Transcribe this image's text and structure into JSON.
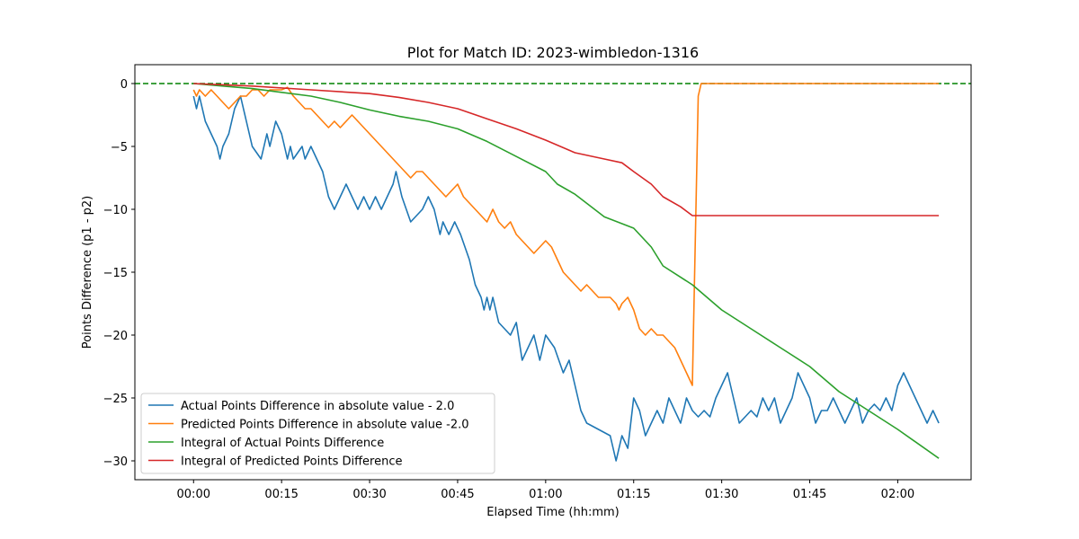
{
  "chart_data": {
    "type": "line",
    "title": "Plot for Match ID: 2023-wimbledon-1316",
    "xlabel": "Elapsed Time (hh:mm)",
    "ylabel": "Points Difference (p1 - p2)",
    "x_unit": "minutes",
    "xlim": [
      -10,
      132.5
    ],
    "ylim": [
      -31.5,
      1.5
    ],
    "x_ticks": [
      {
        "value": 0,
        "label": "00:00"
      },
      {
        "value": 15,
        "label": "00:15"
      },
      {
        "value": 30,
        "label": "00:30"
      },
      {
        "value": 45,
        "label": "00:45"
      },
      {
        "value": 60,
        "label": "01:00"
      },
      {
        "value": 75,
        "label": "01:15"
      },
      {
        "value": 90,
        "label": "01:30"
      },
      {
        "value": 105,
        "label": "01:45"
      },
      {
        "value": 120,
        "label": "02:00"
      }
    ],
    "y_ticks": [
      {
        "value": 0,
        "label": "0"
      },
      {
        "value": -5,
        "label": "−5"
      },
      {
        "value": -10,
        "label": "−10"
      },
      {
        "value": -15,
        "label": "−15"
      },
      {
        "value": -20,
        "label": "−20"
      },
      {
        "value": -25,
        "label": "−25"
      },
      {
        "value": -30,
        "label": "−30"
      }
    ],
    "reference_line": {
      "y": 0,
      "color": "#008000",
      "style": "dashed"
    },
    "legend_position": "lower-left",
    "grid": false,
    "series": [
      {
        "name": "Actual Points Difference in absolute value - 2.0",
        "color": "#1f77b4",
        "points": [
          [
            0,
            -1
          ],
          [
            0.5,
            -2
          ],
          [
            1,
            -1
          ],
          [
            2,
            -3
          ],
          [
            3,
            -4
          ],
          [
            4,
            -5
          ],
          [
            4.5,
            -6
          ],
          [
            5,
            -5
          ],
          [
            6,
            -4
          ],
          [
            7,
            -2
          ],
          [
            8,
            -1
          ],
          [
            9,
            -3
          ],
          [
            10,
            -5
          ],
          [
            11.5,
            -6
          ],
          [
            12.5,
            -4
          ],
          [
            13,
            -5
          ],
          [
            14,
            -3
          ],
          [
            15,
            -4
          ],
          [
            16,
            -6
          ],
          [
            16.5,
            -5
          ],
          [
            17,
            -6
          ],
          [
            18.5,
            -5
          ],
          [
            19,
            -6
          ],
          [
            20,
            -5
          ],
          [
            21,
            -6
          ],
          [
            22,
            -7
          ],
          [
            23,
            -9
          ],
          [
            24,
            -10
          ],
          [
            25,
            -9
          ],
          [
            26,
            -8
          ],
          [
            27,
            -9
          ],
          [
            28,
            -10
          ],
          [
            29,
            -9
          ],
          [
            30,
            -10
          ],
          [
            31,
            -9
          ],
          [
            32,
            -10
          ],
          [
            33,
            -9
          ],
          [
            34,
            -8
          ],
          [
            34.5,
            -7
          ],
          [
            35.5,
            -9
          ],
          [
            37,
            -11
          ],
          [
            38,
            -10.5
          ],
          [
            39,
            -10
          ],
          [
            40,
            -9
          ],
          [
            41,
            -10
          ],
          [
            42,
            -12
          ],
          [
            42.5,
            -11
          ],
          [
            43.5,
            -12
          ],
          [
            44.5,
            -11
          ],
          [
            45.5,
            -12
          ],
          [
            47,
            -14
          ],
          [
            48,
            -16
          ],
          [
            49,
            -17
          ],
          [
            49.5,
            -18
          ],
          [
            50,
            -17
          ],
          [
            50.5,
            -18
          ],
          [
            51,
            -17
          ],
          [
            52,
            -19
          ],
          [
            54,
            -20
          ],
          [
            55,
            -19
          ],
          [
            56,
            -22
          ],
          [
            57,
            -21
          ],
          [
            58,
            -20
          ],
          [
            59,
            -22
          ],
          [
            60,
            -20
          ],
          [
            61.5,
            -21
          ],
          [
            63,
            -23
          ],
          [
            64,
            -22
          ],
          [
            65,
            -24
          ],
          [
            66,
            -26
          ],
          [
            67,
            -27
          ],
          [
            71,
            -28
          ],
          [
            72,
            -30
          ],
          [
            73,
            -28
          ],
          [
            74,
            -29
          ],
          [
            75,
            -25
          ],
          [
            76,
            -26
          ],
          [
            77,
            -28
          ],
          [
            78,
            -27
          ],
          [
            79,
            -26
          ],
          [
            80,
            -27
          ],
          [
            81,
            -25
          ],
          [
            82,
            -26
          ],
          [
            83,
            -27
          ],
          [
            84,
            -25
          ],
          [
            85,
            -26
          ],
          [
            86,
            -26.5
          ],
          [
            87,
            -26
          ],
          [
            88,
            -26.5
          ],
          [
            89,
            -25
          ],
          [
            90,
            -24
          ],
          [
            91,
            -23
          ],
          [
            92,
            -25
          ],
          [
            93,
            -27
          ],
          [
            95,
            -26
          ],
          [
            96,
            -26.5
          ],
          [
            97,
            -25
          ],
          [
            98,
            -26
          ],
          [
            99,
            -25
          ],
          [
            100,
            -27
          ],
          [
            101,
            -26
          ],
          [
            102,
            -25
          ],
          [
            103,
            -23
          ],
          [
            104,
            -24
          ],
          [
            105,
            -25
          ],
          [
            106,
            -27
          ],
          [
            107,
            -26
          ],
          [
            108,
            -26
          ],
          [
            109,
            -25
          ],
          [
            110,
            -26
          ],
          [
            111,
            -27
          ],
          [
            112,
            -26
          ],
          [
            113,
            -25
          ],
          [
            114,
            -27
          ],
          [
            115,
            -26
          ],
          [
            116,
            -25.5
          ],
          [
            117,
            -26
          ],
          [
            118,
            -25
          ],
          [
            119,
            -26
          ],
          [
            120,
            -24
          ],
          [
            121,
            -23
          ],
          [
            122,
            -24
          ],
          [
            123,
            -25
          ],
          [
            124,
            -26
          ],
          [
            125,
            -27
          ],
          [
            126,
            -26
          ],
          [
            127,
            -27
          ]
        ]
      },
      {
        "name": "Predicted Points Difference in absolute value -2.0",
        "color": "#ff7f0e",
        "points": [
          [
            0,
            -0.5
          ],
          [
            0.5,
            -1
          ],
          [
            1,
            -0.5
          ],
          [
            2,
            -1
          ],
          [
            3,
            -0.5
          ],
          [
            4,
            -1
          ],
          [
            5,
            -1.5
          ],
          [
            6,
            -2
          ],
          [
            7,
            -1.5
          ],
          [
            8,
            -1
          ],
          [
            9,
            -1
          ],
          [
            10,
            -0.5
          ],
          [
            11,
            -0.5
          ],
          [
            12,
            -1
          ],
          [
            13,
            -0.5
          ],
          [
            14,
            -0.5
          ],
          [
            15,
            -0.5
          ],
          [
            16,
            -0.3
          ],
          [
            17,
            -1
          ],
          [
            18,
            -1.5
          ],
          [
            19,
            -2
          ],
          [
            20,
            -2
          ],
          [
            21,
            -2.5
          ],
          [
            22,
            -3
          ],
          [
            23,
            -3.5
          ],
          [
            24,
            -3
          ],
          [
            25,
            -3.5
          ],
          [
            26,
            -3
          ],
          [
            27,
            -2.5
          ],
          [
            28,
            -3
          ],
          [
            29,
            -3.5
          ],
          [
            30,
            -4
          ],
          [
            31,
            -4.5
          ],
          [
            32,
            -5
          ],
          [
            33,
            -5.5
          ],
          [
            34,
            -6
          ],
          [
            35,
            -6.5
          ],
          [
            36,
            -7
          ],
          [
            37,
            -7.5
          ],
          [
            38,
            -7
          ],
          [
            39,
            -7
          ],
          [
            40,
            -7.5
          ],
          [
            41,
            -8
          ],
          [
            42,
            -8.5
          ],
          [
            43,
            -9
          ],
          [
            44,
            -8.5
          ],
          [
            45,
            -8
          ],
          [
            46,
            -9
          ],
          [
            47,
            -9.5
          ],
          [
            48,
            -10
          ],
          [
            49,
            -10.5
          ],
          [
            50,
            -11
          ],
          [
            51,
            -10
          ],
          [
            52,
            -11
          ],
          [
            53,
            -11.5
          ],
          [
            54,
            -11
          ],
          [
            55,
            -12
          ],
          [
            56,
            -12.5
          ],
          [
            57,
            -13
          ],
          [
            58,
            -13.5
          ],
          [
            59,
            -13
          ],
          [
            60,
            -12.5
          ],
          [
            61,
            -13
          ],
          [
            62,
            -14
          ],
          [
            63,
            -15
          ],
          [
            64,
            -15.5
          ],
          [
            65,
            -16
          ],
          [
            66,
            -16.5
          ],
          [
            67,
            -16
          ],
          [
            68,
            -16.5
          ],
          [
            69,
            -17
          ],
          [
            70,
            -17
          ],
          [
            71,
            -17
          ],
          [
            72,
            -17.5
          ],
          [
            72.5,
            -18
          ],
          [
            73,
            -17.5
          ],
          [
            74,
            -17
          ],
          [
            75,
            -18
          ],
          [
            76,
            -19.5
          ],
          [
            77,
            -20
          ],
          [
            78,
            -19.5
          ],
          [
            79,
            -20
          ],
          [
            80,
            -20
          ],
          [
            81,
            -20.5
          ],
          [
            82,
            -21
          ],
          [
            83,
            -22
          ],
          [
            84,
            -23
          ],
          [
            85,
            -24
          ],
          [
            86,
            -1
          ],
          [
            86.5,
            0
          ],
          [
            87,
            0
          ],
          [
            90,
            0
          ],
          [
            100,
            0
          ],
          [
            110,
            0
          ],
          [
            120,
            0
          ],
          [
            127,
            0
          ]
        ]
      },
      {
        "name": "Integral of Actual Points Difference",
        "color": "#2ca02c",
        "points": [
          [
            0,
            0
          ],
          [
            5,
            -0.2
          ],
          [
            10,
            -0.4
          ],
          [
            15,
            -0.7
          ],
          [
            20,
            -1.0
          ],
          [
            25,
            -1.5
          ],
          [
            30,
            -2.1
          ],
          [
            35,
            -2.6
          ],
          [
            40,
            -3.0
          ],
          [
            45,
            -3.6
          ],
          [
            50,
            -4.6
          ],
          [
            55,
            -5.8
          ],
          [
            60,
            -7.0
          ],
          [
            62,
            -8.0
          ],
          [
            65,
            -8.8
          ],
          [
            70,
            -10.6
          ],
          [
            75,
            -11.5
          ],
          [
            78,
            -13.0
          ],
          [
            80,
            -14.5
          ],
          [
            85,
            -16.0
          ],
          [
            90,
            -18.0
          ],
          [
            95,
            -19.5
          ],
          [
            100,
            -21.0
          ],
          [
            105,
            -22.5
          ],
          [
            110,
            -24.5
          ],
          [
            115,
            -26.0
          ],
          [
            120,
            -27.5
          ],
          [
            127,
            -29.8
          ]
        ]
      },
      {
        "name": "Integral of Predicted Points Difference",
        "color": "#d62728",
        "points": [
          [
            0,
            0
          ],
          [
            10,
            -0.2
          ],
          [
            20,
            -0.5
          ],
          [
            30,
            -0.8
          ],
          [
            35,
            -1.1
          ],
          [
            40,
            -1.5
          ],
          [
            45,
            -2.0
          ],
          [
            50,
            -2.8
          ],
          [
            55,
            -3.6
          ],
          [
            60,
            -4.5
          ],
          [
            65,
            -5.5
          ],
          [
            70,
            -6.0
          ],
          [
            73,
            -6.3
          ],
          [
            75,
            -7.0
          ],
          [
            78,
            -8.0
          ],
          [
            80,
            -9.0
          ],
          [
            83,
            -9.8
          ],
          [
            85,
            -10.5
          ],
          [
            90,
            -10.5
          ],
          [
            100,
            -10.5
          ],
          [
            110,
            -10.5
          ],
          [
            120,
            -10.5
          ],
          [
            127,
            -10.5
          ]
        ]
      }
    ]
  }
}
